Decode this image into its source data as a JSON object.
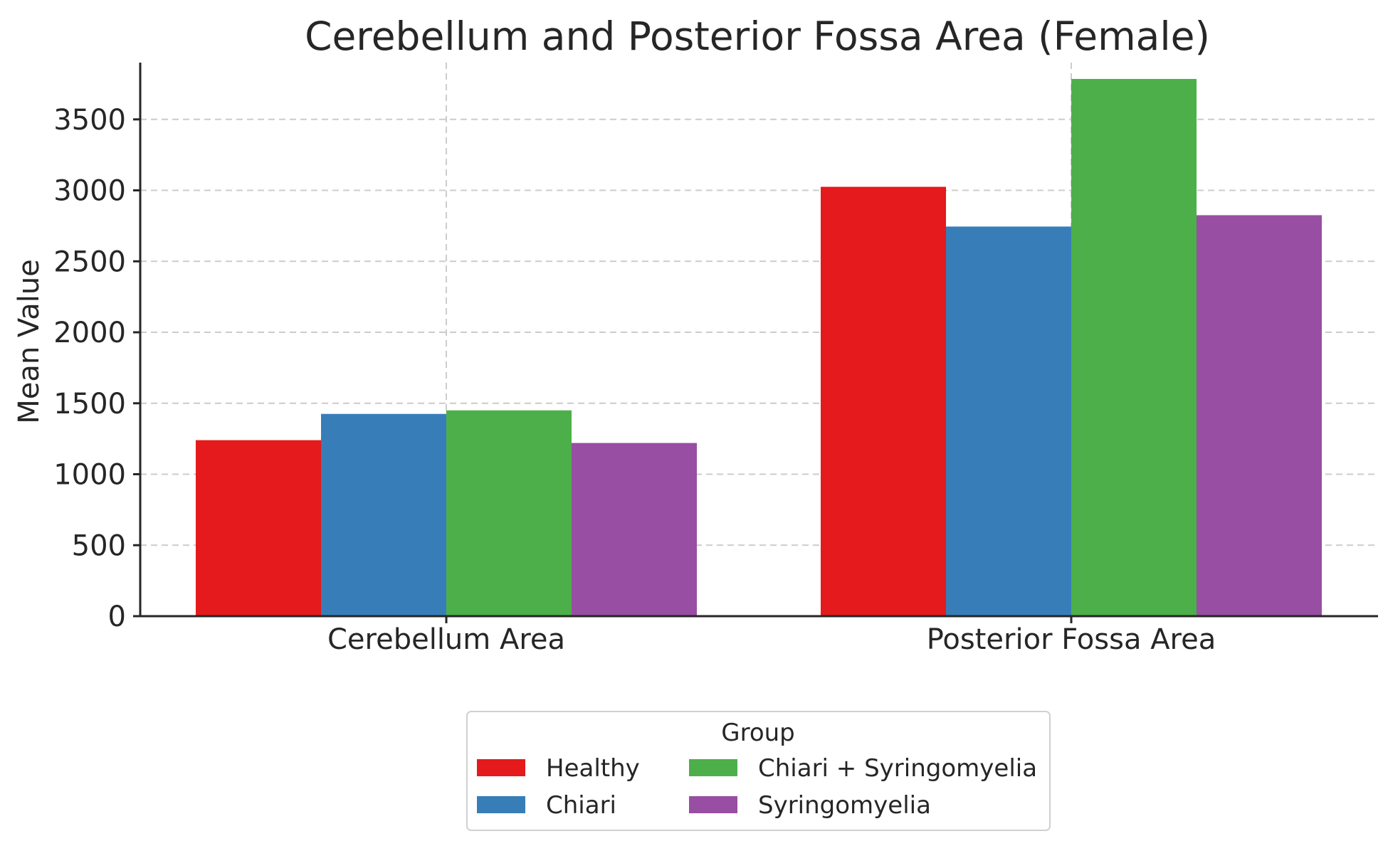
{
  "chart_data": {
    "type": "bar",
    "title": "Cerebellum and Posterior Fossa Area (Female)",
    "xlabel": "",
    "ylabel": "Mean Value",
    "categories": [
      "Cerebellum Area",
      "Posterior Fossa Area"
    ],
    "series": [
      {
        "name": "Healthy",
        "color": "#e41a1c",
        "values": [
          1240,
          3025
        ]
      },
      {
        "name": "Chiari",
        "color": "#377eb8",
        "values": [
          1425,
          2745
        ]
      },
      {
        "name": "Chiari + Syringomyelia",
        "color": "#4daf4a",
        "values": [
          1450,
          3785
        ]
      },
      {
        "name": "Syringomyelia",
        "color": "#984ea3",
        "values": [
          1220,
          2825
        ]
      }
    ],
    "ylim": [
      0,
      3900
    ],
    "yticks": [
      "0",
      "500",
      "1000",
      "1500",
      "2000",
      "2500",
      "3000",
      "3500"
    ],
    "grid": true,
    "legend": {
      "title": "Group",
      "placement": "bottom-center",
      "columns": 2
    }
  }
}
